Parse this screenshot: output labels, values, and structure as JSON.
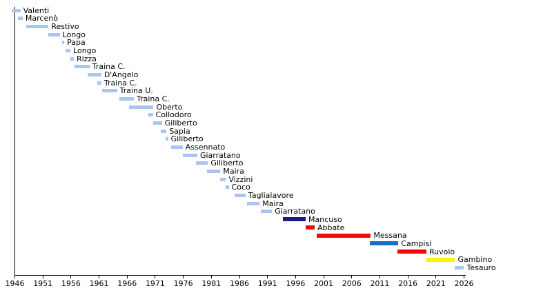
{
  "chart_data": {
    "type": "bar",
    "variant": "horizontal-gantt-timeline",
    "title": "",
    "xlabel": "",
    "ylabel": "",
    "grid": false,
    "legend": "none",
    "x_axis": {
      "min": 1946,
      "max": 2026,
      "tick_interval": 5,
      "tick_labels": [
        "1946",
        "1951",
        "1956",
        "1961",
        "1966",
        "1971",
        "1976",
        "1981",
        "1986",
        "1991",
        "1996",
        "2001",
        "2006",
        "2011",
        "2016",
        "2021",
        "2026"
      ]
    },
    "colors": {
      "default_bar": "#aac6f0",
      "navy": "#1a1a8c",
      "red": "#ee0b0b",
      "blue": "#1470c8",
      "yellow": "#fff200",
      "axis": "#000000",
      "text": "#000000",
      "background": "#ffffff"
    },
    "rows": [
      {
        "label": "Valenti",
        "start": 1945.5,
        "end": 1947.0,
        "color": "#aac6f0"
      },
      {
        "label": "Marcenò",
        "start": 1946.6,
        "end": 1947.4,
        "color": "#aac6f0"
      },
      {
        "label": "Restivo",
        "start": 1948.0,
        "end": 1952.0,
        "color": "#aac6f0"
      },
      {
        "label": "Longo",
        "start": 1952.0,
        "end": 1954.0,
        "color": "#aac6f0"
      },
      {
        "label": "Papa",
        "start": 1954.4,
        "end": 1954.8,
        "color": "#aac6f0"
      },
      {
        "label": "Longo",
        "start": 1955.0,
        "end": 1955.9,
        "color": "#aac6f0"
      },
      {
        "label": "Rizza",
        "start": 1955.9,
        "end": 1956.5,
        "color": "#aac6f0"
      },
      {
        "label": "Traina C.",
        "start": 1956.6,
        "end": 1959.3,
        "color": "#aac6f0"
      },
      {
        "label": "D'Angelo",
        "start": 1959.0,
        "end": 1961.4,
        "color": "#aac6f0"
      },
      {
        "label": "Traina C.",
        "start": 1960.7,
        "end": 1961.4,
        "color": "#aac6f0"
      },
      {
        "label": "Traina U.",
        "start": 1961.5,
        "end": 1964.2,
        "color": "#aac6f0"
      },
      {
        "label": "Traina C.",
        "start": 1964.6,
        "end": 1967.2,
        "color": "#aac6f0"
      },
      {
        "label": "Oberto",
        "start": 1966.3,
        "end": 1970.7,
        "color": "#aac6f0"
      },
      {
        "label": "Collodoro",
        "start": 1969.8,
        "end": 1970.6,
        "color": "#aac6f0"
      },
      {
        "label": "Giliberto",
        "start": 1970.7,
        "end": 1972.2,
        "color": "#aac6f0"
      },
      {
        "label": "Sapia",
        "start": 1972.0,
        "end": 1973.0,
        "color": "#aac6f0"
      },
      {
        "label": "Giliberto",
        "start": 1972.8,
        "end": 1973.3,
        "color": "#aac6f0"
      },
      {
        "label": "Assennato",
        "start": 1973.8,
        "end": 1975.9,
        "color": "#aac6f0"
      },
      {
        "label": "Giarratano",
        "start": 1975.9,
        "end": 1978.5,
        "color": "#aac6f0"
      },
      {
        "label": "Giliberto",
        "start": 1978.3,
        "end": 1980.4,
        "color": "#aac6f0"
      },
      {
        "label": "Maira",
        "start": 1980.2,
        "end": 1982.6,
        "color": "#aac6f0"
      },
      {
        "label": "Vizzini",
        "start": 1982.6,
        "end": 1983.6,
        "color": "#aac6f0"
      },
      {
        "label": "Coco",
        "start": 1983.6,
        "end": 1984.1,
        "color": "#aac6f0"
      },
      {
        "label": "Taglialavore",
        "start": 1985.1,
        "end": 1987.1,
        "color": "#aac6f0"
      },
      {
        "label": "Maira",
        "start": 1987.3,
        "end": 1989.6,
        "color": "#aac6f0"
      },
      {
        "label": "Giarratano",
        "start": 1989.8,
        "end": 1991.8,
        "color": "#aac6f0"
      },
      {
        "label": "Mancuso",
        "start": 1993.7,
        "end": 1997.8,
        "color": "#1a1a8c"
      },
      {
        "label": "Abbate",
        "start": 1997.8,
        "end": 1999.4,
        "color": "#ee0b0b"
      },
      {
        "label": "Messana",
        "start": 1999.8,
        "end": 2009.4,
        "color": "#ee0b0b"
      },
      {
        "label": "Campisi",
        "start": 2009.2,
        "end": 2014.3,
        "color": "#1470c8"
      },
      {
        "label": "Ruvolo",
        "start": 2014.1,
        "end": 2019.3,
        "color": "#ee0b0b"
      },
      {
        "label": "Gambino",
        "start": 2019.3,
        "end": 2024.4,
        "color": "#fff200"
      },
      {
        "label": "Tesauro",
        "start": 2024.4,
        "end": 2026.0,
        "color": "#aac6f0"
      }
    ]
  }
}
